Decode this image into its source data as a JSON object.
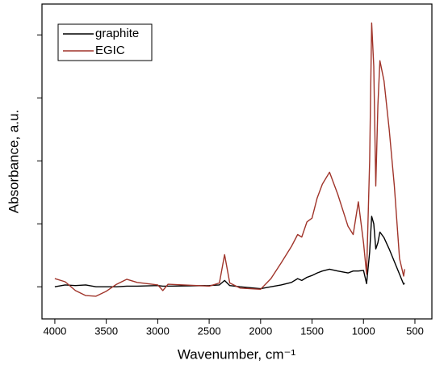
{
  "chart_data": {
    "type": "line",
    "x_label": "Wavenumber, cm⁻¹",
    "y_label": "Absorbance, a.u.",
    "x": [
      4000,
      3900,
      3800,
      3700,
      3600,
      3500,
      3400,
      3300,
      3200,
      3000,
      2950,
      2900,
      2500,
      2400,
      2350,
      2300,
      2200,
      2000,
      1900,
      1800,
      1700,
      1640,
      1600,
      1550,
      1500,
      1450,
      1400,
      1330,
      1250,
      1150,
      1100,
      1050,
      1000,
      970,
      940,
      920,
      900,
      880,
      860,
      840,
      800,
      750,
      700,
      650,
      610,
      600
    ],
    "series": [
      {
        "name": "graphite",
        "color": "#000000",
        "values": [
          0,
          0.03,
          0.02,
          0.03,
          0,
          0,
          0,
          0.01,
          0.01,
          0.02,
          0.01,
          0.01,
          0.02,
          0.03,
          0.1,
          0.02,
          0,
          -0.03,
          0,
          0.03,
          0.07,
          0.13,
          0.1,
          0.15,
          0.18,
          0.22,
          0.25,
          0.28,
          0.25,
          0.22,
          0.25,
          0.25,
          0.26,
          0.05,
          0.55,
          1.12,
          1.0,
          0.6,
          0.7,
          0.87,
          0.78,
          0.6,
          0.4,
          0.2,
          0.04,
          0.06
        ]
      },
      {
        "name": "EGIC",
        "color": "#a0342a",
        "values": [
          0.13,
          0.08,
          -0.06,
          -0.14,
          -0.15,
          -0.07,
          0.04,
          0.12,
          0.07,
          0.03,
          -0.06,
          0.04,
          0.01,
          0.06,
          0.51,
          0.06,
          -0.02,
          -0.04,
          0.13,
          0.38,
          0.64,
          0.83,
          0.79,
          1.03,
          1.09,
          1.41,
          1.63,
          1.82,
          1.47,
          0.96,
          0.83,
          1.35,
          0.7,
          0.2,
          2.0,
          4.19,
          3.5,
          1.6,
          2.88,
          3.59,
          3.27,
          2.5,
          1.6,
          0.45,
          0.17,
          0.28
        ]
      }
    ],
    "xlim": [
      4125,
      335
    ],
    "xticks": [
      4000,
      3500,
      3000,
      2500,
      2000,
      1500,
      1000,
      500
    ],
    "ylim": [
      -0.51,
      4.49
    ],
    "yticks": [
      0,
      1,
      2,
      3,
      4
    ],
    "legend": "upper-left"
  }
}
